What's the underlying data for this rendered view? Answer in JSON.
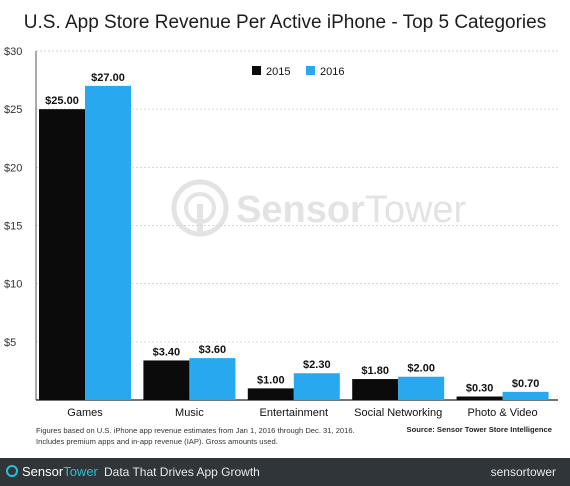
{
  "colors": {
    "series_2015": "#0b0b0b",
    "series_2016": "#28a8ee",
    "axis": "#555555",
    "grid": "#d6d6d6",
    "watermark": "#e3e3e3",
    "footer_bg": "#2f3539",
    "brand_accent": "#28c0d6"
  },
  "watermark": {
    "text_a": "Sensor",
    "text_b": "Tower"
  },
  "footnote": {
    "line1": "Figures based on U.S. iPhone app revenue estimates from Jan 1, 2016 through Dec. 31, 2016.",
    "line2": "Includes premium apps and in-app revenue (IAP). Gross amounts used."
  },
  "source": "Source: Sensor Tower Store Intelligence",
  "footer": {
    "brand_a": "Sensor",
    "brand_b": "Tower",
    "tagline": "Data That Drives App Growth",
    "site": "sensortower"
  },
  "chart_data": {
    "type": "bar",
    "title": "U.S. App Store Revenue Per Active iPhone - Top 5 Categories",
    "xlabel": "",
    "ylabel": "",
    "categories": [
      "Games",
      "Music",
      "Entertainment",
      "Social Networking",
      "Photo & Video"
    ],
    "series": [
      {
        "name": "2015",
        "values": [
          25.0,
          3.4,
          1.0,
          1.8,
          0.3
        ],
        "labels": [
          "$25.00",
          "$3.40",
          "$1.00",
          "$1.80",
          "$0.30"
        ]
      },
      {
        "name": "2016",
        "values": [
          27.0,
          3.6,
          2.3,
          2.0,
          0.7
        ],
        "labels": [
          "$27.00",
          "$3.60",
          "$2.30",
          "$2.00",
          "$0.70"
        ]
      }
    ],
    "ylim": [
      0,
      30
    ],
    "yticks": [
      0,
      5,
      10,
      15,
      20,
      25,
      30
    ],
    "ytick_labels": [
      "",
      "$5",
      "$10",
      "$15",
      "$20",
      "$25",
      "$30"
    ],
    "grid": true,
    "legend_position": "top-center"
  }
}
